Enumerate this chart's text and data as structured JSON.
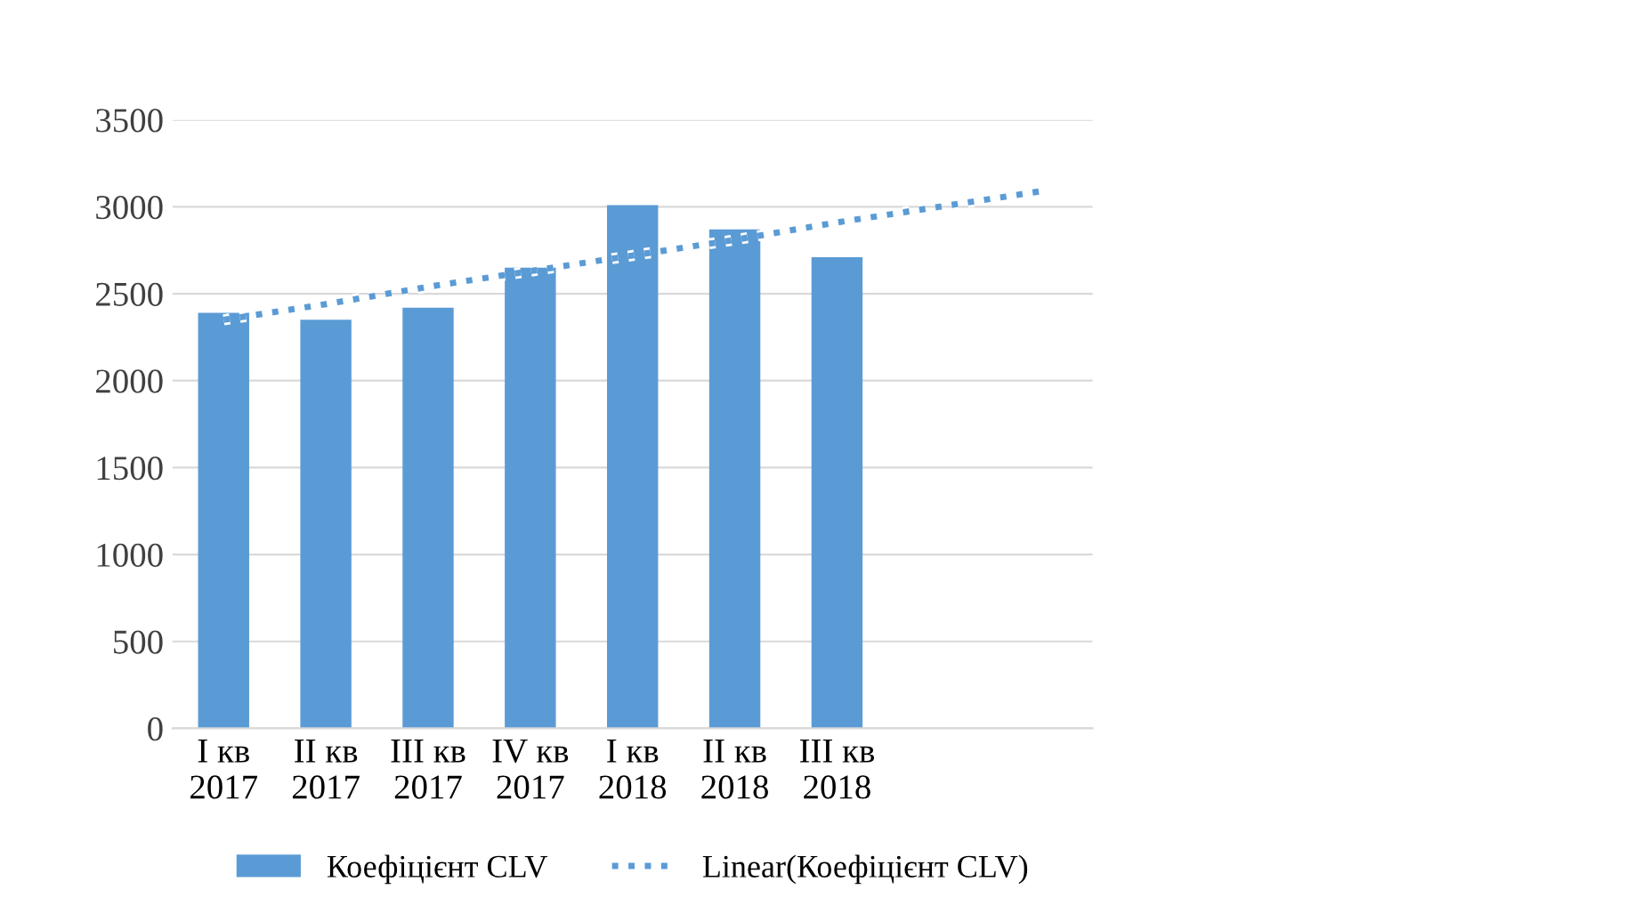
{
  "chart_data": {
    "type": "bar",
    "categories": [
      "I кв\n2017",
      "II кв\n2017",
      "III кв\n2017",
      "IV кв\n2017",
      "I кв\n2018",
      "II кв\n2018",
      "III кв\n2018",
      null,
      null
    ],
    "series": [
      {
        "name": "Коефіцієнт CLV",
        "color": "#5b9bd5",
        "values": [
          2390,
          2350,
          2420,
          2650,
          3010,
          2870,
          2710,
          null,
          null
        ]
      },
      {
        "name": "Linear(Коефіцієнт CLV)",
        "type": "line",
        "line_style": "dotted",
        "color": "#5b9bd5",
        "values": [
          2350,
          2440,
          2540,
          2630,
          2720,
          2810,
          2910,
          3000,
          3090
        ]
      }
    ],
    "ylim": [
      0,
      3500
    ],
    "yticks": [
      0,
      500,
      1000,
      1500,
      2000,
      2500,
      3000,
      3500
    ],
    "grid": "y",
    "legend": "bottom"
  }
}
